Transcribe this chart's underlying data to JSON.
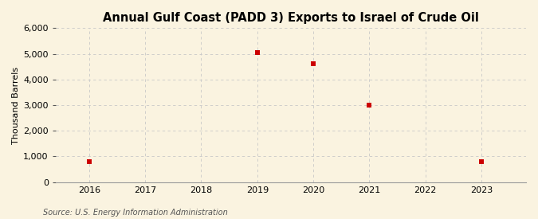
{
  "title": "Annual Gulf Coast (PADD 3) Exports to Israel of Crude Oil",
  "ylabel": "Thousand Barrels",
  "source": "Source: U.S. Energy Information Administration",
  "x_data": [
    2016,
    2019,
    2020,
    2021,
    2023
  ],
  "y_data": [
    800,
    5050,
    4600,
    3000,
    800
  ],
  "x_ticks": [
    2016,
    2017,
    2018,
    2019,
    2020,
    2021,
    2022,
    2023
  ],
  "ylim": [
    0,
    6000
  ],
  "xlim": [
    2015.4,
    2023.8
  ],
  "yticks": [
    0,
    1000,
    2000,
    3000,
    4000,
    5000,
    6000
  ],
  "marker_color": "#cc0000",
  "marker": "s",
  "marker_size": 4,
  "background_color": "#faf3e0",
  "plot_bg_color": "#faf3e0",
  "grid_color": "#c8c8c8",
  "title_fontsize": 10.5,
  "title_fontweight": "bold",
  "label_fontsize": 8,
  "tick_fontsize": 8,
  "source_fontsize": 7
}
